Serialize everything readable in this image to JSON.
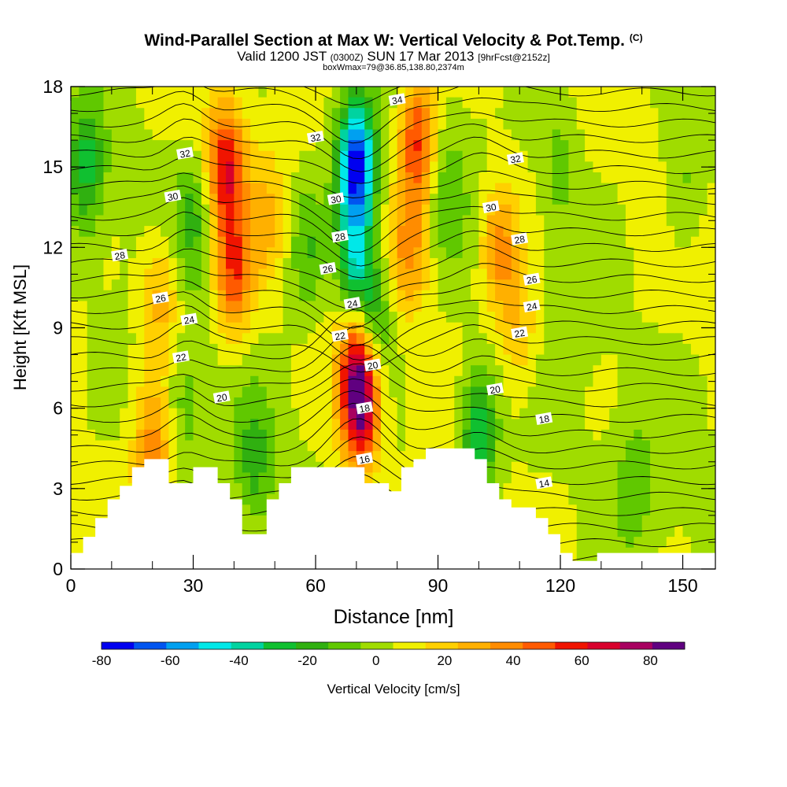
{
  "header": {
    "title": "Wind-Parallel Section at Max W: Vertical Velocity & Pot.Temp.",
    "copyright": "(C)",
    "valid_prefix": "Valid 1200 JST",
    "valid_utc": "(0300Z)",
    "valid_date": "SUN 17 Mar 2013",
    "forecast": "[9hrFcst@2152z]",
    "box_note": "boxWmax=79@36.85,138.80,2374m"
  },
  "chart_data": {
    "type": "heatmap",
    "xlabel": "Distance [nm]",
    "ylabel": "Height [Kft MSL]",
    "xlim": [
      0,
      158
    ],
    "ylim": [
      0,
      18
    ],
    "x_ticks": [
      0,
      30,
      60,
      90,
      120,
      150
    ],
    "y_ticks": [
      0,
      3,
      6,
      9,
      12,
      15,
      18
    ],
    "colorbar": {
      "label": "Vertical Velocity [cm/s]",
      "ticks": [
        -80,
        -60,
        -40,
        -20,
        0,
        20,
        40,
        60,
        80
      ],
      "range": [
        -80,
        90
      ],
      "colors": [
        "#0000f0",
        "#0055f0",
        "#00a0f0",
        "#00e8e8",
        "#00d3a0",
        "#10c030",
        "#30b010",
        "#60c800",
        "#a0dc00",
        "#f0f000",
        "#ffd000",
        "#ffb000",
        "#ff8c00",
        "#ff5a00",
        "#f01400",
        "#d8002c",
        "#a80060",
        "#600080"
      ]
    },
    "velocity_features": [
      {
        "x": 38,
        "height": 15,
        "w": 55
      },
      {
        "x": 40,
        "height": 11,
        "w": 45
      },
      {
        "x": 71,
        "height": 6.2,
        "w": 80
      },
      {
        "x": 70,
        "height": 8.5,
        "w": 40
      },
      {
        "x": 85,
        "height": 16,
        "w": 50
      },
      {
        "x": 83,
        "height": 12,
        "w": 30
      },
      {
        "x": 105,
        "height": 12,
        "w": 35
      },
      {
        "x": 110,
        "height": 9,
        "w": 20
      },
      {
        "x": 22,
        "height": 10,
        "w": 25
      },
      {
        "x": 48,
        "height": 13,
        "w": 18
      },
      {
        "x": 20,
        "height": 4.5,
        "w": 30
      },
      {
        "x": 70,
        "height": 15,
        "w": -80
      },
      {
        "x": 70,
        "height": 11,
        "w": -50
      },
      {
        "x": 74,
        "height": 9,
        "w": -30
      },
      {
        "x": 100,
        "height": 5,
        "w": -40
      },
      {
        "x": 4,
        "height": 15,
        "w": -30
      },
      {
        "x": 30,
        "height": 13,
        "w": -20
      },
      {
        "x": 58,
        "height": 12,
        "w": -20
      },
      {
        "x": 92,
        "height": 14,
        "w": -15
      },
      {
        "x": 120,
        "height": 15,
        "w": -15
      },
      {
        "x": 150,
        "height": 14,
        "w": -15
      },
      {
        "x": 45,
        "height": 4,
        "w": -20
      },
      {
        "x": 138,
        "height": 3,
        "w": -15
      },
      {
        "x": 28,
        "height": 6,
        "w": -15
      }
    ],
    "theta_labels": [
      {
        "x": 28,
        "height": 15.5,
        "text": "32"
      },
      {
        "x": 60,
        "height": 16.1,
        "text": "32"
      },
      {
        "x": 109,
        "height": 15.3,
        "text": "32"
      },
      {
        "x": 80,
        "height": 17.5,
        "text": "34"
      },
      {
        "x": 25,
        "height": 13.9,
        "text": "30"
      },
      {
        "x": 65,
        "height": 13.8,
        "text": "30"
      },
      {
        "x": 103,
        "height": 13.5,
        "text": "30"
      },
      {
        "x": 12,
        "height": 11.7,
        "text": "28"
      },
      {
        "x": 66,
        "height": 12.4,
        "text": "28"
      },
      {
        "x": 110,
        "height": 12.3,
        "text": "28"
      },
      {
        "x": 63,
        "height": 11.2,
        "text": "26"
      },
      {
        "x": 22,
        "height": 10.1,
        "text": "26"
      },
      {
        "x": 113,
        "height": 10.8,
        "text": "26"
      },
      {
        "x": 69,
        "height": 9.9,
        "text": "24"
      },
      {
        "x": 29,
        "height": 9.3,
        "text": "24"
      },
      {
        "x": 113,
        "height": 9.8,
        "text": "24"
      },
      {
        "x": 66,
        "height": 8.7,
        "text": "22"
      },
      {
        "x": 27,
        "height": 7.9,
        "text": "22"
      },
      {
        "x": 110,
        "height": 8.8,
        "text": "22"
      },
      {
        "x": 74,
        "height": 7.6,
        "text": "20"
      },
      {
        "x": 37,
        "height": 6.4,
        "text": "20"
      },
      {
        "x": 104,
        "height": 6.7,
        "text": "20"
      },
      {
        "x": 72,
        "height": 6.0,
        "text": "18"
      },
      {
        "x": 116,
        "height": 5.6,
        "text": "18"
      },
      {
        "x": 72,
        "height": 4.1,
        "text": "16"
      },
      {
        "x": 116,
        "height": 3.2,
        "text": "14"
      }
    ],
    "terrain": [
      [
        0,
        0.6
      ],
      [
        3,
        0.6
      ],
      [
        3,
        1.2
      ],
      [
        6,
        1.2
      ],
      [
        6,
        1.9
      ],
      [
        9,
        1.9
      ],
      [
        9,
        2.6
      ],
      [
        12,
        2.6
      ],
      [
        12,
        3.1
      ],
      [
        15,
        3.1
      ],
      [
        15,
        3.8
      ],
      [
        18,
        3.8
      ],
      [
        18,
        4.1
      ],
      [
        24,
        4.1
      ],
      [
        24,
        3.2
      ],
      [
        30,
        3.2
      ],
      [
        30,
        3.8
      ],
      [
        36,
        3.8
      ],
      [
        36,
        3.2
      ],
      [
        39,
        3.2
      ],
      [
        39,
        2.6
      ],
      [
        42,
        2.6
      ],
      [
        42,
        1.3
      ],
      [
        48,
        1.3
      ],
      [
        48,
        2.6
      ],
      [
        51,
        2.6
      ],
      [
        51,
        3.2
      ],
      [
        54,
        3.2
      ],
      [
        54,
        3.8
      ],
      [
        72,
        3.8
      ],
      [
        72,
        3.2
      ],
      [
        78,
        3.2
      ],
      [
        78,
        2.9
      ],
      [
        81,
        2.9
      ],
      [
        81,
        3.8
      ],
      [
        84,
        3.8
      ],
      [
        84,
        4.1
      ],
      [
        87,
        4.1
      ],
      [
        87,
        4.5
      ],
      [
        99,
        4.5
      ],
      [
        99,
        4.1
      ],
      [
        102,
        4.1
      ],
      [
        102,
        3.2
      ],
      [
        105,
        3.2
      ],
      [
        105,
        2.6
      ],
      [
        108,
        2.6
      ],
      [
        108,
        2.3
      ],
      [
        114,
        2.3
      ],
      [
        114,
        1.9
      ],
      [
        117,
        1.9
      ],
      [
        117,
        1.3
      ],
      [
        120,
        1.3
      ],
      [
        120,
        0.6
      ],
      [
        123,
        0.6
      ],
      [
        123,
        0.3
      ],
      [
        129,
        0.3
      ],
      [
        129,
        0.6
      ],
      [
        158,
        0.6
      ]
    ]
  }
}
